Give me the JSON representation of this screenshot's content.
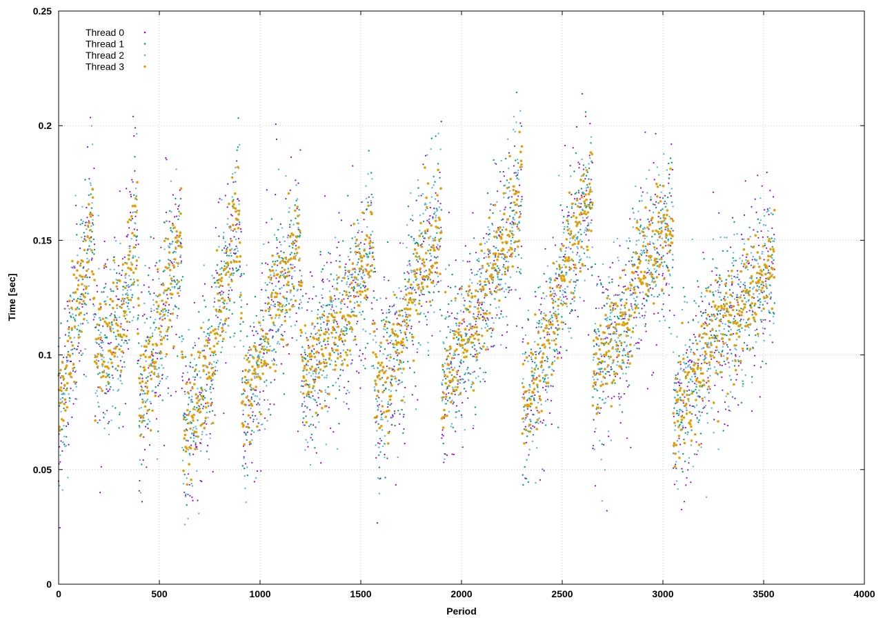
{
  "chart_data": {
    "type": "scatter",
    "title": "",
    "xlabel": "Period",
    "ylabel": "Time [sec]",
    "xlim": [
      0,
      4000
    ],
    "ylim": [
      0,
      0.25
    ],
    "xticks": [
      0,
      500,
      1000,
      1500,
      2000,
      2500,
      3000,
      3500,
      4000
    ],
    "yticks": [
      0,
      0.05,
      0.1,
      0.15,
      0.2,
      0.25
    ],
    "xtick_labels": [
      "0",
      "500",
      "1000",
      "1500",
      "2000",
      "2500",
      "3000",
      "3500",
      "4000"
    ],
    "ytick_labels": [
      "0",
      "0.05",
      "0.1",
      "0.15",
      "0.2",
      "0.25"
    ],
    "grid": true,
    "legend_position": "top-left",
    "period_count": 3555,
    "cycle_segments": [
      {
        "x_start": 0,
        "x_end": 170,
        "y_start": 0.07,
        "y_end": 0.16
      },
      {
        "x_start": 180,
        "x_end": 330,
        "y_start": 0.1,
        "y_end": 0.115
      },
      {
        "x_start": 330,
        "x_end": 390,
        "y_start": 0.12,
        "y_end": 0.165
      },
      {
        "x_start": 400,
        "x_end": 610,
        "y_start": 0.075,
        "y_end": 0.15
      },
      {
        "x_start": 620,
        "x_end": 770,
        "y_start": 0.06,
        "y_end": 0.095
      },
      {
        "x_start": 770,
        "x_end": 900,
        "y_start": 0.11,
        "y_end": 0.16
      },
      {
        "x_start": 910,
        "x_end": 1050,
        "y_start": 0.075,
        "y_end": 0.11
      },
      {
        "x_start": 1050,
        "x_end": 1200,
        "y_start": 0.12,
        "y_end": 0.145
      },
      {
        "x_start": 1210,
        "x_end": 1390,
        "y_start": 0.085,
        "y_end": 0.115
      },
      {
        "x_start": 1390,
        "x_end": 1560,
        "y_start": 0.11,
        "y_end": 0.15
      },
      {
        "x_start": 1570,
        "x_end": 1720,
        "y_start": 0.08,
        "y_end": 0.11
      },
      {
        "x_start": 1720,
        "x_end": 1900,
        "y_start": 0.12,
        "y_end": 0.16
      },
      {
        "x_start": 1900,
        "x_end": 2050,
        "y_start": 0.085,
        "y_end": 0.115
      },
      {
        "x_start": 2050,
        "x_end": 2300,
        "y_start": 0.11,
        "y_end": 0.17
      },
      {
        "x_start": 2300,
        "x_end": 2480,
        "y_start": 0.07,
        "y_end": 0.12
      },
      {
        "x_start": 2480,
        "x_end": 2650,
        "y_start": 0.13,
        "y_end": 0.17
      },
      {
        "x_start": 2650,
        "x_end": 2850,
        "y_start": 0.09,
        "y_end": 0.12
      },
      {
        "x_start": 2850,
        "x_end": 3050,
        "y_start": 0.13,
        "y_end": 0.16
      },
      {
        "x_start": 3050,
        "x_end": 3200,
        "y_start": 0.07,
        "y_end": 0.095
      },
      {
        "x_start": 3200,
        "x_end": 3555,
        "y_start": 0.1,
        "y_end": 0.14
      }
    ],
    "series": [
      {
        "name": "Thread 0",
        "color": "#9400d3",
        "marker": "dot",
        "marker_size": 1.1,
        "scatter_sd": 0.022,
        "seed": 11
      },
      {
        "name": "Thread 1",
        "color": "#009e73",
        "marker": "dot",
        "marker_size": 1.2,
        "scatter_sd": 0.017,
        "seed": 23
      },
      {
        "name": "Thread 2",
        "color": "#56b4e9",
        "marker": "dot",
        "marker_size": 1.2,
        "scatter_sd": 0.019,
        "seed": 37
      },
      {
        "name": "Thread 3",
        "color": "#e69f00",
        "marker": "dot",
        "marker_size": 1.8,
        "scatter_sd": 0.012,
        "seed": 51
      }
    ]
  }
}
